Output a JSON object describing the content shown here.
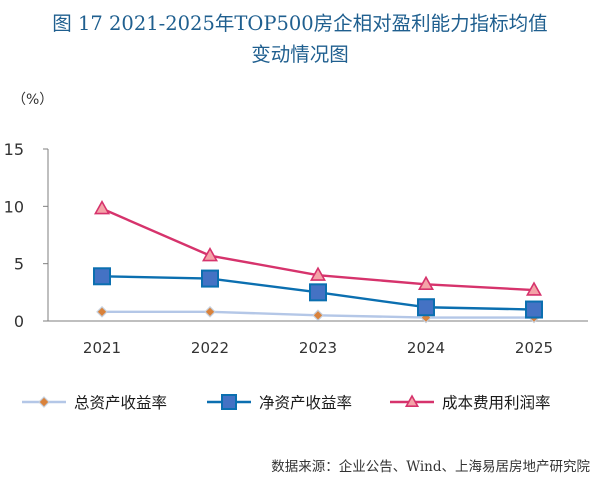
{
  "figure": {
    "title_line1": "图 17 2021-2025年TOP500房企相对盈利能力指标均值",
    "title_line2": "变动情况图",
    "source": "数据来源：企业公告、Wind、上海易居房地产研究院"
  },
  "chart_data": {
    "type": "line",
    "title": "2021-2025年TOP500房企相对盈利能力指标均值变动情况图",
    "unit_label": "（%）",
    "xlabel": "",
    "ylabel": "%",
    "categories": [
      "2021",
      "2022",
      "2023",
      "2024",
      "2025"
    ],
    "ylim": [
      0,
      15
    ],
    "yticks": [
      0,
      5,
      10,
      15
    ],
    "grid": false,
    "legend_position": "bottom",
    "series": [
      {
        "name": "总资产收益率",
        "values": [
          0.8,
          0.8,
          0.5,
          0.3,
          0.3
        ],
        "line_color": "#b4c7e7",
        "marker": "diamond",
        "marker_fill": "#d9823b",
        "marker_stroke": "#c5cfdc"
      },
      {
        "name": "净资产收益率",
        "values": [
          3.9,
          3.7,
          2.5,
          1.2,
          1.0
        ],
        "line_color": "#0b6fb0",
        "marker": "square",
        "marker_fill": "#4472c4",
        "marker_stroke": "#0b6fb0"
      },
      {
        "name": "成本费用利润率",
        "values": [
          9.8,
          5.7,
          4.0,
          3.2,
          2.7
        ],
        "line_color": "#d6336c",
        "marker": "triangle",
        "marker_fill": "#f4a3a8",
        "marker_stroke": "#d6336c"
      }
    ]
  }
}
